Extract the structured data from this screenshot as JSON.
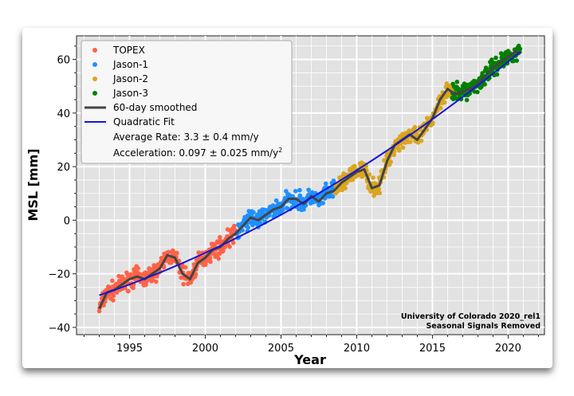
{
  "chart_data": {
    "type": "scatter",
    "xlabel": "Year",
    "ylabel": "MSL [mm]",
    "xlim": [
      1991.5,
      2022.4
    ],
    "ylim": [
      -42.7,
      68.8
    ],
    "xticks": [
      1995,
      2000,
      2005,
      2010,
      2015,
      2020
    ],
    "yticks": [
      -40,
      -20,
      0,
      20,
      40,
      60
    ],
    "grid": true,
    "legend_position": "top-left",
    "series": [
      {
        "name": "TOPEX",
        "color": "#ff6347",
        "range": [
          1993.0,
          2002.1
        ]
      },
      {
        "name": "Jason-1",
        "color": "#1e90ff",
        "range": [
          2002.1,
          2008.6
        ]
      },
      {
        "name": "Jason-2",
        "color": "#daa520",
        "range": [
          2008.6,
          2016.5
        ]
      },
      {
        "name": "Jason-3",
        "color": "#008000",
        "range": [
          2016.3,
          2020.8
        ]
      }
    ],
    "smoothed": {
      "name": "60-day smoothed",
      "color": "#444444",
      "x": [
        1993.0,
        1993.5,
        1994,
        1994.5,
        1995,
        1995.5,
        1996,
        1996.5,
        1997,
        1997.5,
        1998,
        1998.5,
        1999,
        1999.5,
        2000,
        2000.5,
        2001,
        2001.5,
        2002,
        2002.5,
        2003,
        2003.5,
        2004,
        2004.5,
        2005,
        2005.5,
        2006,
        2006.5,
        2007,
        2007.5,
        2008,
        2008.5,
        2009,
        2009.5,
        2010,
        2010.5,
        2011,
        2011.5,
        2012,
        2012.5,
        2013,
        2013.5,
        2014,
        2014.5,
        2015,
        2015.5,
        2016,
        2016.5,
        2017,
        2017.5,
        2018,
        2018.5,
        2019,
        2019.5,
        2020,
        2020.5,
        2020.8
      ],
      "y": [
        -33,
        -27,
        -26,
        -24,
        -22,
        -21,
        -22,
        -20,
        -18,
        -13,
        -14,
        -20,
        -22,
        -16,
        -14,
        -11,
        -10,
        -7,
        -5,
        -2,
        1,
        0,
        2,
        4,
        5,
        8,
        8,
        6,
        9,
        7,
        10,
        11,
        14,
        16,
        18,
        19,
        12,
        13,
        22,
        28,
        30,
        32,
        30,
        34,
        38,
        45,
        49,
        47,
        48,
        49,
        51,
        54,
        57,
        59,
        61,
        63,
        62
      ]
    },
    "fit": {
      "name": "Quadratic Fit",
      "color": "#1515d8",
      "t0": 1993,
      "y0": -28,
      "b": 1.92,
      "c": 0.0485,
      "x_end": 2020.8
    },
    "annotations": {
      "rate": "Average Rate: 3.3 ± 0.4 mm/y",
      "accel": "Acceleration: 0.097 ± 0.025 mm/y",
      "accel_sup": "2",
      "credit1": "University of Colorado 2020_rel1",
      "credit2": "Seasonal Signals Removed"
    }
  }
}
